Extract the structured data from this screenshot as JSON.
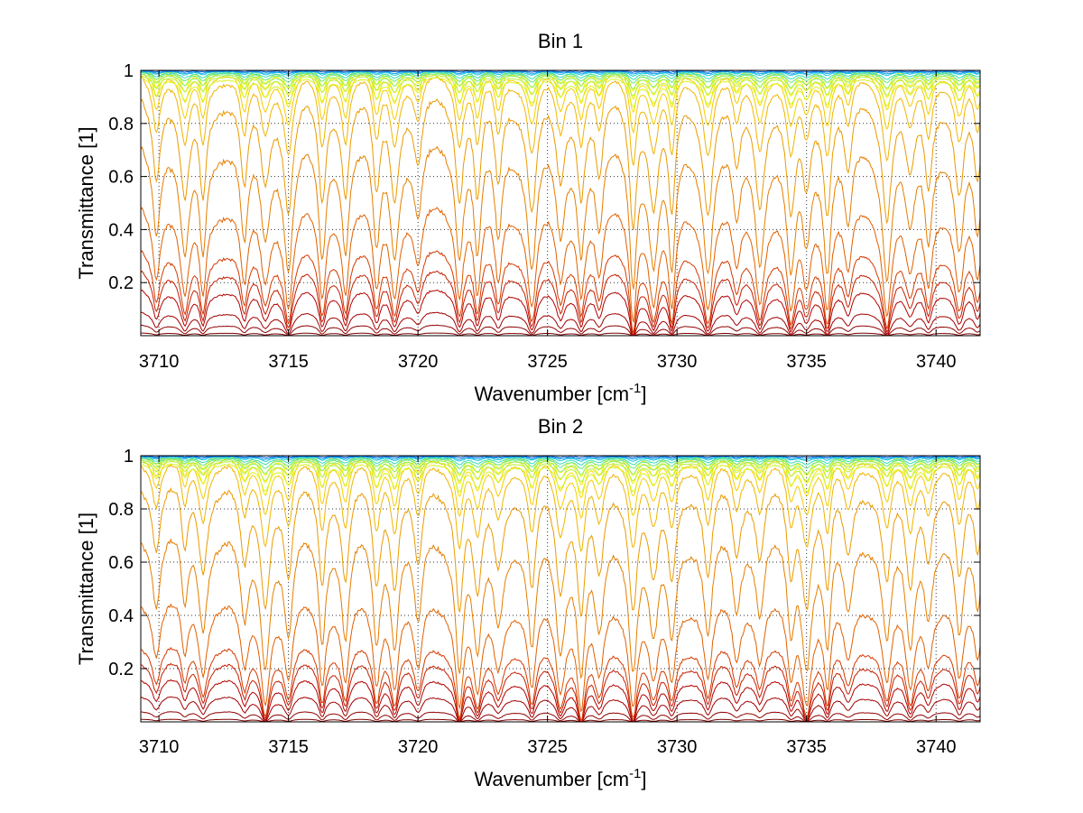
{
  "chart_data": [
    {
      "type": "line",
      "title": "Bin 1",
      "xlabel": "Wavenumber [cm",
      "xlabel_sup": "-1",
      "xlabel_end": "]",
      "ylabel": "Transmittance [1]",
      "xlim": [
        3709.3,
        3741.7
      ],
      "ylim": [
        0,
        1
      ],
      "xticks": [
        3710,
        3715,
        3720,
        3725,
        3730,
        3735,
        3740
      ],
      "xtick_labels": [
        "3710",
        "3715",
        "3720",
        "3725",
        "3730",
        "3735",
        "3740"
      ],
      "yticks": [
        0.2,
        0.4,
        0.6,
        0.8,
        1
      ],
      "ytick_labels": [
        "0.2",
        "0.4",
        "0.6",
        "0.8",
        "1"
      ],
      "grid": true,
      "colormap": "jet",
      "series_levels": [
        0.005,
        0.02,
        0.045,
        0.09,
        0.13,
        0.175,
        0.28,
        0.46,
        0.66,
        0.82,
        0.89,
        0.93,
        0.955,
        0.97,
        0.98,
        0.986,
        0.99,
        0.993,
        0.995,
        0.997,
        0.998,
        0.999
      ],
      "series_colors": [
        "#7f0000",
        "#8f0000",
        "#a00000",
        "#b20000",
        "#c41e00",
        "#d43a00",
        "#e06000",
        "#e57e00",
        "#eb9a00",
        "#f0b400",
        "#f5cc00",
        "#f8de00",
        "#fbec00",
        "#f2f50a",
        "#d6f51e",
        "#b4f23c",
        "#8cf060",
        "#64e88a",
        "#3cdcb4",
        "#1ec8dc",
        "#14a0f0",
        "#0a64dc"
      ],
      "absorption_lines": [
        3709.9,
        3711.0,
        3711.7,
        3713.3,
        3714.1,
        3715.0,
        3716.3,
        3717.2,
        3718.4,
        3719.1,
        3720.0,
        3721.6,
        3722.3,
        3723.1,
        3724.4,
        3725.5,
        3726.3,
        3727.0,
        3728.3,
        3729.1,
        3729.8,
        3731.2,
        3732.3,
        3733.2,
        3734.4,
        3735.0,
        3735.8,
        3736.6,
        3738.1,
        3739.0,
        3739.7,
        3740.9,
        3741.6
      ]
    },
    {
      "type": "line",
      "title": "Bin 2",
      "xlabel": "Wavenumber [cm",
      "xlabel_sup": "-1",
      "xlabel_end": "]",
      "ylabel": "Transmittance [1]",
      "xlim": [
        3709.3,
        3741.7
      ],
      "ylim": [
        0,
        1
      ],
      "xticks": [
        3710,
        3715,
        3720,
        3725,
        3730,
        3735,
        3740
      ],
      "xtick_labels": [
        "3710",
        "3715",
        "3720",
        "3725",
        "3730",
        "3735",
        "3740"
      ],
      "yticks": [
        0.2,
        0.4,
        0.6,
        0.8,
        1
      ],
      "ytick_labels": [
        "0.2",
        "0.4",
        "0.6",
        "0.8",
        "1"
      ],
      "grid": true,
      "colormap": "jet",
      "series_levels": [
        0.005,
        0.02,
        0.05,
        0.085,
        0.12,
        0.155,
        0.26,
        0.45,
        0.66,
        0.82,
        0.89,
        0.93,
        0.955,
        0.97,
        0.98,
        0.986,
        0.99,
        0.993,
        0.995,
        0.997,
        0.998,
        0.999
      ],
      "series_colors": [
        "#7f0000",
        "#8f0000",
        "#a00000",
        "#b20000",
        "#c41e00",
        "#d43a00",
        "#e06000",
        "#e57e00",
        "#eb9a00",
        "#f0b400",
        "#f5cc00",
        "#f8de00",
        "#fbec00",
        "#f2f50a",
        "#d6f51e",
        "#b4f23c",
        "#8cf060",
        "#64e88a",
        "#3cdcb4",
        "#1ec8dc",
        "#14a0f0",
        "#0a64dc"
      ],
      "absorption_lines": [
        3709.9,
        3711.0,
        3711.7,
        3713.3,
        3714.1,
        3715.0,
        3716.3,
        3717.2,
        3718.4,
        3719.1,
        3720.0,
        3721.6,
        3722.3,
        3723.1,
        3724.4,
        3725.5,
        3726.3,
        3727.0,
        3728.3,
        3729.1,
        3729.8,
        3731.2,
        3732.3,
        3733.2,
        3734.4,
        3735.0,
        3735.8,
        3736.6,
        3738.1,
        3739.0,
        3739.7,
        3740.9,
        3741.6
      ]
    }
  ]
}
